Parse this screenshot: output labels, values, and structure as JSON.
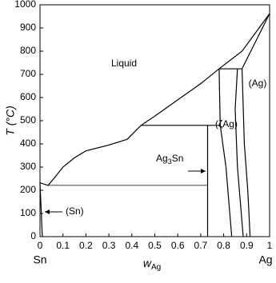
{
  "chart_data": {
    "type": "line",
    "ylabel": "T (°C)",
    "xlabel": {
      "text": "w",
      "sub": "Ag"
    },
    "xlim": [
      0,
      1
    ],
    "ylim": [
      0,
      1000
    ],
    "xticks": [
      0,
      0.1,
      0.2,
      0.3,
      0.4,
      0.5,
      0.6,
      0.7,
      0.8,
      0.9,
      1
    ],
    "yticks": [
      0,
      100,
      200,
      300,
      400,
      500,
      600,
      700,
      800,
      900,
      1000
    ],
    "color": "#000000",
    "end_labels": [
      "Sn",
      "Ag"
    ],
    "series": [
      {
        "x": [
          0,
          0.035,
          0.06,
          0.1,
          0.15,
          0.2,
          0.3,
          0.38,
          0.44,
          0.5,
          0.6,
          0.7,
          0.78,
          0.88,
          1
        ],
        "values": [
          232,
          221,
          250,
          300,
          340,
          370,
          395,
          420,
          480,
          520,
          590,
          660,
          724,
          800,
          962
        ]
      },
      {
        "x": [
          0.035,
          0.73
        ],
        "values": [
          221,
          221
        ]
      },
      {
        "x": [
          0.44,
          0.785
        ],
        "values": [
          480,
          480
        ]
      },
      {
        "x": [
          0.78,
          0.88
        ],
        "values": [
          724,
          724
        ]
      },
      {
        "x": [
          0.73,
          0.73
        ],
        "values": [
          480,
          0
        ]
      },
      {
        "x": [
          0.78,
          0.785,
          0.81,
          0.835
        ],
        "values": [
          724,
          480,
          300,
          0
        ]
      },
      {
        "x": [
          0.86,
          0.85,
          0.86,
          0.885
        ],
        "values": [
          724,
          550,
          300,
          0
        ]
      },
      {
        "x": [
          0.88,
          0.89,
          0.905,
          0.915
        ],
        "values": [
          724,
          400,
          200,
          0
        ]
      },
      {
        "x": [
          0.88,
          1
        ],
        "values": [
          724,
          962
        ]
      },
      {
        "x": [
          0,
          0.01
        ],
        "values": [
          232,
          0
        ]
      }
    ],
    "annotations": [
      {
        "text": "Liquid"
      },
      {
        "text": "(Ag)"
      },
      {
        "text": "(ζAg)"
      },
      {
        "text": "(Sn)"
      },
      {
        "text": "Ag",
        "sub": "3",
        "rest": "Sn"
      }
    ]
  }
}
